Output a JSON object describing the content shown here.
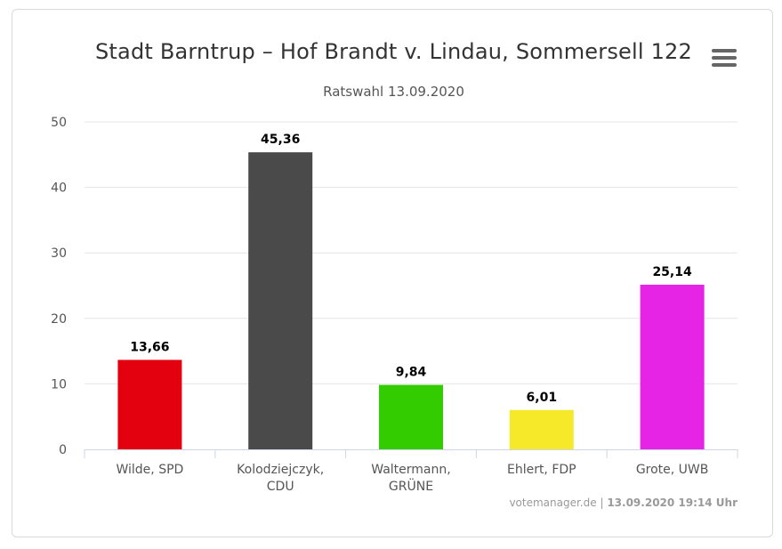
{
  "chart_data": {
    "type": "bar",
    "title": "Stadt Barntrup – Hof Brandt v. Lindau, Sommersell 122",
    "subtitle": "Ratswahl 13.09.2020",
    "categories": [
      [
        "Wilde, SPD"
      ],
      [
        "Kolodziejczyk,",
        "CDU"
      ],
      [
        "Waltermann,",
        "GRÜNE"
      ],
      [
        "Ehlert, FDP"
      ],
      [
        "Grote, UWB"
      ]
    ],
    "values": [
      13.66,
      45.36,
      9.84,
      6.01,
      25.14
    ],
    "value_labels": [
      "13,66",
      "45,36",
      "9,84",
      "6,01",
      "25,14"
    ],
    "colors": [
      "#e3000f",
      "#4a4a4a",
      "#33cc00",
      "#f5e92a",
      "#e624e6"
    ],
    "ylim": [
      0,
      50
    ],
    "yticks": [
      0,
      10,
      20,
      30,
      40,
      50
    ],
    "grid": true,
    "legend": false
  },
  "credits": {
    "site": "votemanager.de",
    "separator": "|",
    "timestamp": "13.09.2020 19:14 Uhr"
  },
  "menu_icon": "hamburger-menu-icon"
}
